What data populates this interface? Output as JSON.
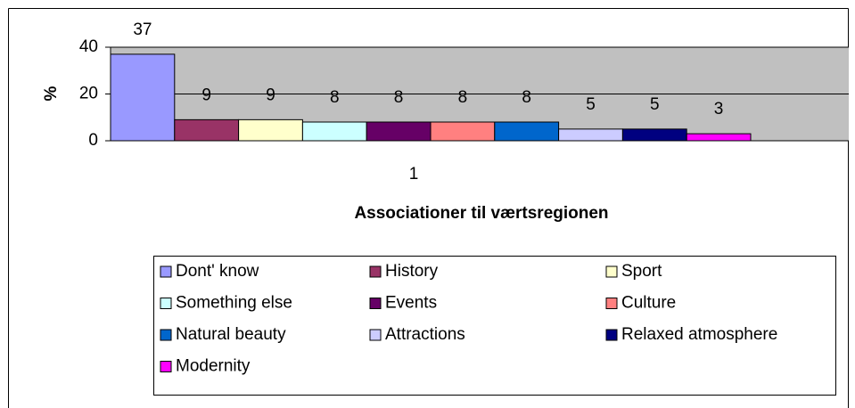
{
  "chart_data": {
    "type": "bar",
    "categories": [
      "1"
    ],
    "x_label": "Associationer til værtsregionen",
    "y_label": "%",
    "ylim": [
      0,
      40
    ],
    "yticks": [
      0,
      20,
      40
    ],
    "grid": true,
    "legend": "bottom",
    "series": [
      {
        "name": "Dont' know",
        "color": "#9999ff",
        "values": [
          37
        ]
      },
      {
        "name": "History",
        "color": "#993366",
        "values": [
          9
        ]
      },
      {
        "name": "Sport",
        "color": "#ffffcc",
        "values": [
          9
        ]
      },
      {
        "name": "Something else",
        "color": "#ccffff",
        "values": [
          8
        ]
      },
      {
        "name": "Events",
        "color": "#660066",
        "values": [
          8
        ]
      },
      {
        "name": "Culture",
        "color": "#ff8080",
        "values": [
          8
        ]
      },
      {
        "name": "Natural beauty",
        "color": "#0066cc",
        "values": [
          8
        ]
      },
      {
        "name": "Attractions",
        "color": "#ccccff",
        "values": [
          5
        ]
      },
      {
        "name": "Relaxed atmosphere",
        "color": "#000080",
        "values": [
          5
        ]
      },
      {
        "name": "Modernity",
        "color": "#ff00ff",
        "values": [
          3
        ]
      }
    ]
  }
}
